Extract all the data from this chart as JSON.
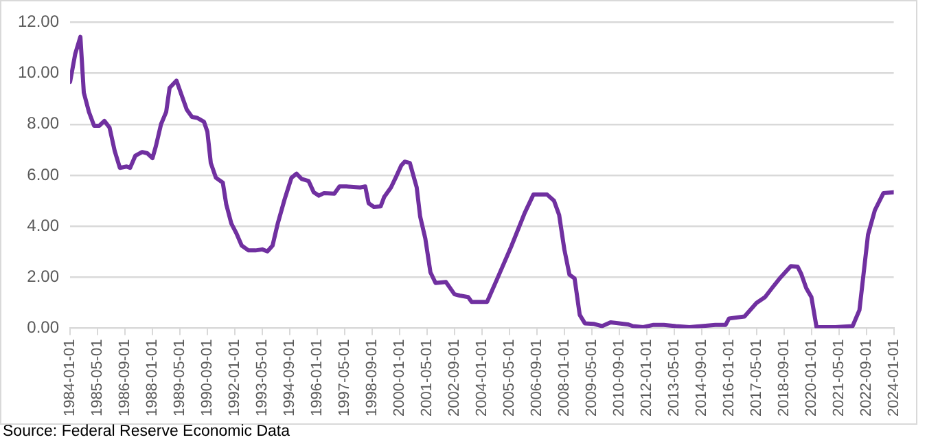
{
  "chart_data": {
    "type": "line",
    "x": [
      "1984-01-01",
      "1984-04-01",
      "1984-07-01",
      "1984-09-01",
      "1984-12-01",
      "1985-03-01",
      "1985-06-01",
      "1985-09-01",
      "1985-12-01",
      "1986-03-01",
      "1986-06-01",
      "1986-10-01",
      "1986-12-01",
      "1987-03-01",
      "1987-07-01",
      "1987-10-01",
      "1988-01-01",
      "1988-03-01",
      "1988-06-01",
      "1988-09-01",
      "1988-11-01",
      "1989-03-01",
      "1989-06-01",
      "1989-09-01",
      "1989-12-01",
      "1990-03-01",
      "1990-07-01",
      "1990-09-01",
      "1990-11-01",
      "1991-02-01",
      "1991-06-01",
      "1991-08-01",
      "1991-11-01",
      "1992-02-01",
      "1992-05-01",
      "1992-09-01",
      "1993-01-01",
      "1993-05-01",
      "1993-08-01",
      "1993-11-01",
      "1994-02-01",
      "1994-06-01",
      "1994-10-01",
      "1995-01-01",
      "1995-04-01",
      "1995-08-01",
      "1995-11-01",
      "1996-02-01",
      "1996-05-01",
      "1996-11-01",
      "1997-02-01",
      "1997-06-01",
      "1998-02-01",
      "1998-05-01",
      "1998-07-01",
      "1998-10-01",
      "1999-02-01",
      "1999-04-01",
      "1999-08-01",
      "1999-11-01",
      "2000-02-01",
      "2000-04-01",
      "2000-07-01",
      "2000-11-01",
      "2001-01-01",
      "2001-04-01",
      "2001-07-01",
      "2001-10-01",
      "2002-04-01",
      "2002-09-01",
      "2002-12-01",
      "2003-05-01",
      "2003-07-01",
      "2004-04-01",
      "2004-10-01",
      "2005-06-01",
      "2006-02-01",
      "2006-07-01",
      "2007-03-01",
      "2007-07-01",
      "2007-10-01",
      "2008-01-01",
      "2008-04-01",
      "2008-07-01",
      "2008-10-01",
      "2009-01-01",
      "2009-06-01",
      "2009-11-01",
      "2010-04-01",
      "2011-02-01",
      "2011-05-01",
      "2011-11-01",
      "2012-05-01",
      "2012-11-01",
      "2013-06-01",
      "2014-02-01",
      "2014-09-01",
      "2015-05-01",
      "2015-11-01",
      "2016-01-01",
      "2016-10-01",
      "2017-05-01",
      "2017-10-01",
      "2018-02-01",
      "2018-07-01",
      "2019-01-01",
      "2019-05-01",
      "2019-07-01",
      "2019-10-01",
      "2020-01-01",
      "2020-04-01",
      "2021-03-01",
      "2022-01-01",
      "2022-05-01",
      "2022-10-01",
      "2023-02-01",
      "2023-07-01",
      "2024-01-01"
    ],
    "series": [
      {
        "color": "#7030a0",
        "values": [
          9.66,
          10.76,
          11.43,
          9.24,
          8.48,
          7.94,
          7.94,
          8.13,
          7.87,
          6.95,
          6.29,
          6.34,
          6.29,
          6.76,
          6.91,
          6.86,
          6.67,
          7.14,
          8.0,
          8.48,
          9.43,
          9.71,
          9.14,
          8.57,
          8.29,
          8.25,
          8.1,
          7.71,
          6.48,
          5.9,
          5.71,
          4.86,
          4.1,
          3.71,
          3.24,
          3.05,
          3.05,
          3.09,
          3.01,
          3.24,
          4.1,
          5.05,
          5.9,
          6.06,
          5.85,
          5.77,
          5.33,
          5.2,
          5.3,
          5.28,
          5.56,
          5.56,
          5.52,
          5.56,
          4.9,
          4.76,
          4.78,
          5.14,
          5.52,
          5.94,
          6.38,
          6.53,
          6.48,
          5.52,
          4.38,
          3.52,
          2.19,
          1.77,
          1.81,
          1.33,
          1.28,
          1.22,
          1.03,
          1.03,
          1.95,
          3.19,
          4.53,
          5.24,
          5.24,
          5.0,
          4.44,
          3.1,
          2.1,
          1.95,
          0.52,
          0.19,
          0.17,
          0.08,
          0.23,
          0.15,
          0.08,
          0.04,
          0.13,
          0.13,
          0.08,
          0.04,
          0.08,
          0.13,
          0.13,
          0.38,
          0.46,
          0.99,
          1.22,
          1.57,
          1.99,
          2.43,
          2.41,
          2.14,
          1.57,
          1.22,
          0.04,
          0.04,
          0.08,
          0.71,
          3.67,
          4.63,
          5.3,
          5.33
        ]
      }
    ],
    "xlim": [
      "1984-01-01",
      "2024-01-01"
    ],
    "xticks": [
      "1984-01-01",
      "1985-05-01",
      "1986-09-01",
      "1988-01-01",
      "1989-05-01",
      "1990-09-01",
      "1992-01-01",
      "1993-05-01",
      "1994-09-01",
      "1996-01-01",
      "1997-05-01",
      "1998-09-01",
      "2000-01-01",
      "2001-05-01",
      "2002-09-01",
      "2004-01-01",
      "2005-05-01",
      "2006-09-01",
      "2008-01-01",
      "2009-05-01",
      "2010-09-01",
      "2012-01-01",
      "2013-05-01",
      "2014-09-01",
      "2016-01-01",
      "2017-05-01",
      "2018-09-01",
      "2020-01-01",
      "2021-05-01",
      "2022-09-01",
      "2024-01-01"
    ],
    "ylim": [
      0,
      12
    ],
    "yticks": [
      {
        "value": 0,
        "label": "0.00"
      },
      {
        "value": 2,
        "label": "2.00"
      },
      {
        "value": 4,
        "label": "4.00"
      },
      {
        "value": 6,
        "label": "6.00"
      },
      {
        "value": 8,
        "label": "8.00"
      },
      {
        "value": 10,
        "label": "10.00"
      },
      {
        "value": 12,
        "label": "12.00"
      }
    ],
    "grid": "y",
    "legend": false,
    "marker": "none",
    "line_style": "solid",
    "annotations": [
      "Source: Federal Reserve Economic Data"
    ]
  }
}
